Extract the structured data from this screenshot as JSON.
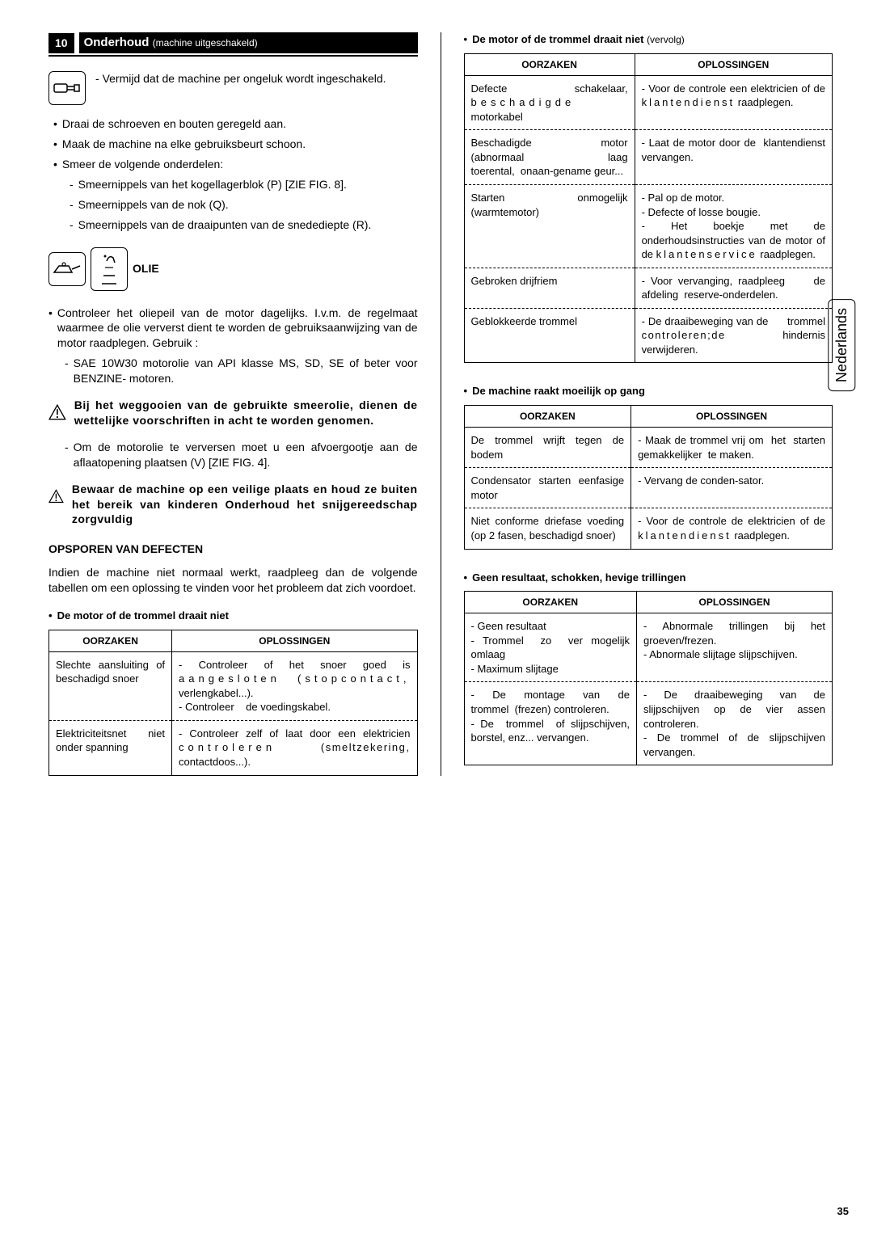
{
  "section": {
    "number": "10",
    "title": "Onderhoud",
    "subtitle": "(machine uitgeschakeld)"
  },
  "note_power_off": "Vermijd dat de machine per ongeluk wordt ingeschakeld.",
  "left_bullets": [
    "Draai de schroeven en bouten geregeld aan.",
    "Maak de machine na elke gebruiksbeurt schoon.",
    "Smeer de volgende onderdelen:"
  ],
  "left_sub": [
    "Smeernippels van het kogellagerblok (P) [ZIE FIG. 8].",
    "Smeernippels van de nok (Q).",
    "Smeernippels van de draaipunten van de snedediepte (R)."
  ],
  "oil_label": "OLIE",
  "oil_text": "Controleer het oliepeil van de motor dagelijks. I.v.m. de regelmaat waarmee de olie ververst dient te worden de gebruiksaanwijzing van de motor raadplegen.  Gebruik :",
  "oil_sub": "SAE 10W30 motorolie van API klasse MS, SD, SE of beter voor BENZINE- motoren.",
  "warn1": "Bij het weggooien van de gebruikte smeerolie, dienen de wettelijke voorschriften in acht te worden genomen.",
  "oil_drain": "Om de motorolie te verversen moet u een afvoergootje aan de aflaatopening plaatsen (V) [ZIE FIG.  4].",
  "warn2": "Bewaar de machine op een veilige plaats en houd ze buiten het bereik van kinderen Onderhoud het snijgereedschap zorgvuldig",
  "defect_title": "OPSPOREN VAN DEFECTEN",
  "defect_intro": "Indien de machine niet normaal werkt, raadpleeg dan de volgende tabellen om een oplossing te vinden voor het probleem dat zich voordoet.",
  "t1_title": "De motor of de trommel draait niet",
  "t_headers": {
    "c1": "OORZAKEN",
    "c2": "OPLOSSINGEN"
  },
  "t1_rows": [
    {
      "cause": "Slechte aansluiting of beschadigd snoer",
      "fix_html": "- Controleer of het snoer goed is <span class='sp3'>aangesloten (stopcontact,</span> verlengkabel...).<br>- Controleer&nbsp;&nbsp;&nbsp;&nbsp;de voedingskabel."
    },
    {
      "cause": "Elektriciteitsnet niet onder spanning",
      "fix_html": "- Controleer zelf of laat door een elektricien <span class='sp3'>controleren</span> <span class='sp'>(smeltzekering,</span> contactdoos...)."
    }
  ],
  "t2_title": "De motor of de trommel draait niet",
  "t2_suffix": "(vervolg)",
  "t2_rows": [
    {
      "cause_html": "Defecte schakelaar, <span class='sp3'>beschadigde</span> motorkabel",
      "fix_html": "- Voor de controle een elektricien of de <span class='sp2'>klantendienst</span> raadplegen."
    },
    {
      "cause_html": "Beschadigde motor (abnormaal&nbsp;&nbsp;&nbsp;laag toerental,&nbsp;&nbsp;onaan-gename geur...",
      "fix_html": "- Laat de motor door de&nbsp;&nbsp;klantendienst vervangen."
    },
    {
      "cause_html": "Starten onmogelijk (warmtemotor)",
      "fix_html": "- Pal op de motor.<br>- Defecte of losse bougie.<br>- Het boekje met de onderhoudsinstructies van de motor of de <span class='sp2'>klantenservice</span> raadplegen."
    },
    {
      "cause_html": "Gebroken drijfriem",
      "fix_html": "- Voor vervanging, raadpleeg&nbsp;&nbsp;&nbsp;&nbsp;&nbsp;de afdeling&nbsp;&nbsp;reserve-onderdelen."
    },
    {
      "cause_html": "Geblokkeerde trommel",
      "fix_html": "- De draaibeweging van de&nbsp;&nbsp;&nbsp;&nbsp;&nbsp;&nbsp;trommel <span class='sp'>controleren;de</span> hindernis verwijderen."
    }
  ],
  "t3_title": "De machine raakt moeilijk op gang",
  "t3_rows": [
    {
      "cause_html": "De trommel wrijft tegen de bodem",
      "fix_html": "- Maak de trommel vrij om&nbsp;&nbsp;het&nbsp;&nbsp;starten gemakkelijker&nbsp;&nbsp;te maken."
    },
    {
      "cause_html": "Condensator starten eenfasige motor",
      "fix_html": "- Vervang de conden-sator."
    },
    {
      "cause_html": "Niet conforme driefase voeding (op 2 fasen, beschadigd snoer)",
      "fix_html": "- Voor de controle de elektricien of de <span class='sp2'>klantendienst</span> raadplegen."
    }
  ],
  "t4_title": "Geen resultaat, schokken, hevige trillingen",
  "t4_rows": [
    {
      "cause_html": "- Geen resultaat<br>- Trommel&nbsp;&nbsp;zo&nbsp;&nbsp;ver mogelijk omlaag<br>- Maximum slijtage",
      "fix_html": "- Abnormale trillingen bij het groeven/frezen.<br>- Abnormale slijtage slijpschijven."
    },
    {
      "cause_html": "- De montage van de trommel&nbsp;&nbsp;(frezen) controleren.<br>- De&nbsp;&nbsp;trommel&nbsp;&nbsp;of slijpschijven, borstel, enz... vervangen.",
      "fix_html": "- De draaibeweging van de slijpschijven op de vier assen controleren.<br>- De trommel of de slijpschijven vervangen."
    }
  ],
  "side_tab": "Nederlands",
  "page_number": "35"
}
